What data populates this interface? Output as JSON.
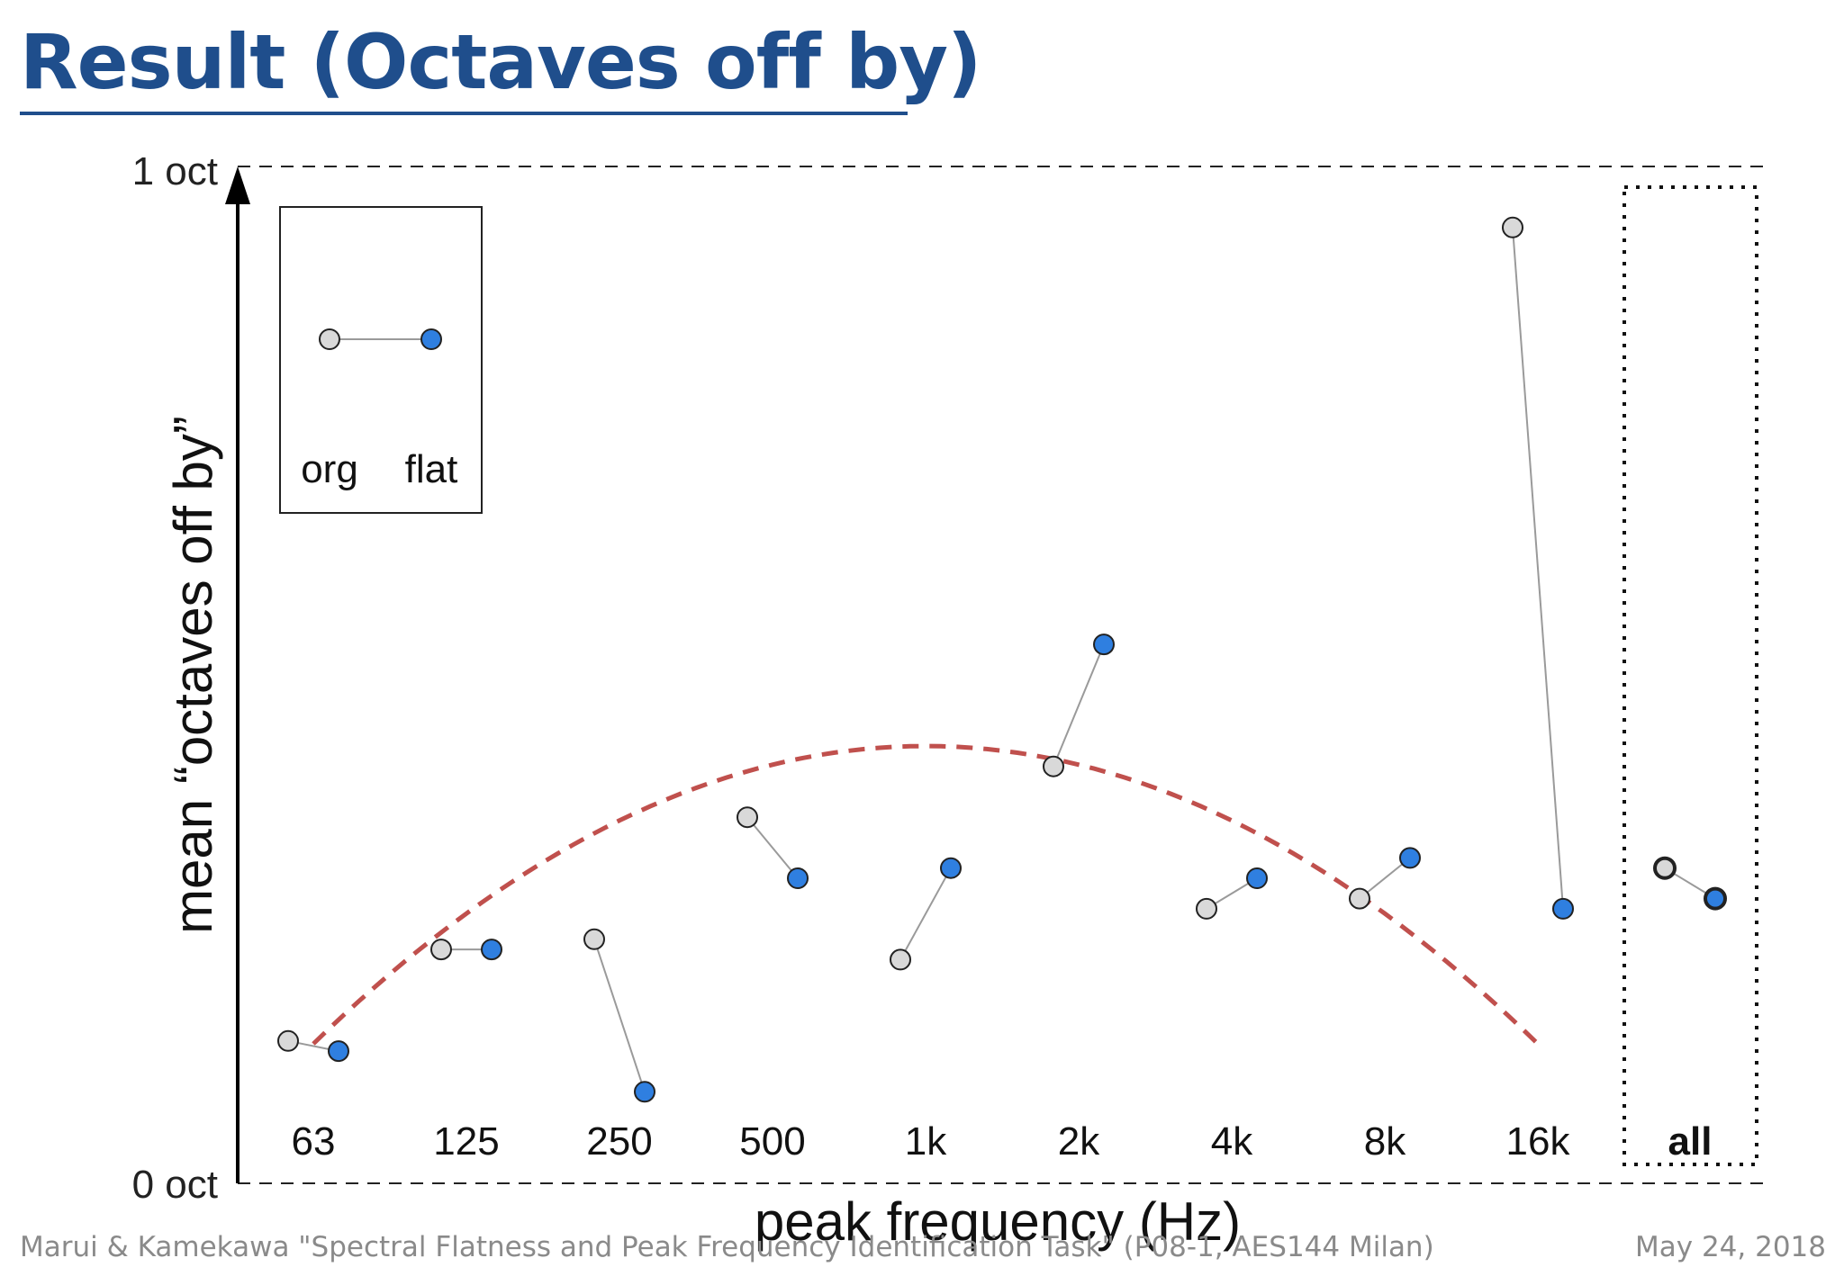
{
  "slide": {
    "title": "Result (Octaves off by)",
    "footer_left": "Marui & Kamekawa \"Spectral Flatness and Peak Frequency Identification Task\" (P08-1, AES144 Milan)",
    "footer_right": "May 24, 2018"
  },
  "chart_data": {
    "type": "scatter",
    "title": "",
    "xlabel": "peak frequency (Hz)",
    "ylabel": "mean “octaves off by”",
    "ylim": [
      0,
      1
    ],
    "y_top_label": "1 oct",
    "y_bottom_label": "0 oct",
    "categories": [
      "63",
      "125",
      "250",
      "500",
      "1k",
      "2k",
      "4k",
      "8k",
      "16k",
      "all"
    ],
    "series": [
      {
        "name": "org",
        "color": "#d9d9d9",
        "values": [
          0.14,
          0.23,
          0.24,
          0.36,
          0.22,
          0.41,
          0.27,
          0.28,
          0.94,
          0.31
        ]
      },
      {
        "name": "flat",
        "color": "#2f7fe0",
        "values": [
          0.13,
          0.23,
          0.09,
          0.3,
          0.31,
          0.53,
          0.3,
          0.32,
          0.27,
          0.28
        ]
      }
    ],
    "trend": {
      "style": "dashed",
      "color": "#c0504d",
      "peak_category": "1k",
      "peak_value": 0.43
    },
    "legend": {
      "position": "top-left",
      "labels": [
        "org",
        "flat"
      ]
    },
    "grid": false
  }
}
